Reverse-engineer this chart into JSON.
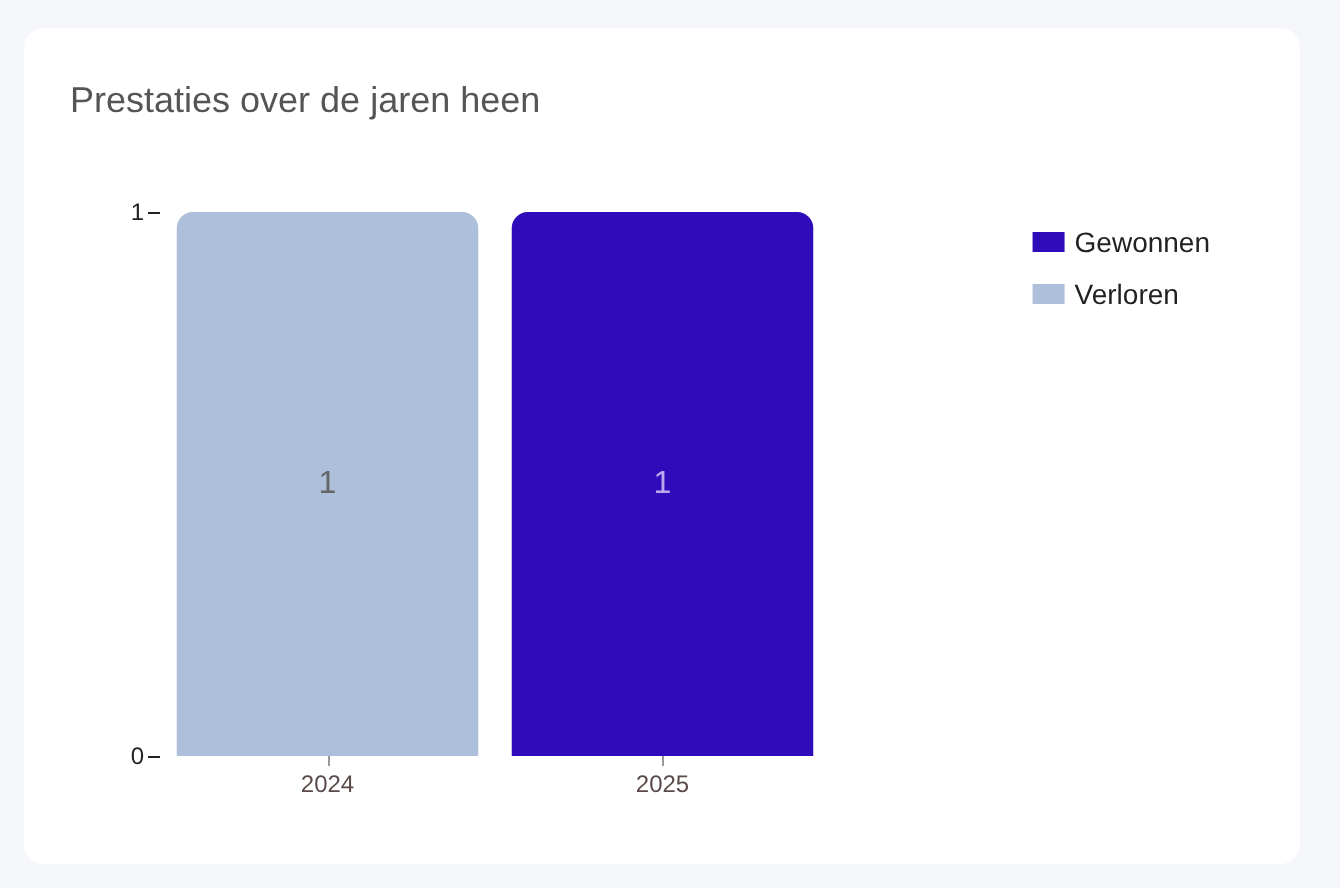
{
  "chart_data": {
    "type": "bar",
    "title": "Prestaties over de jaren heen",
    "categories": [
      "2024",
      "2025"
    ],
    "series": [
      {
        "name": "Gewonnen",
        "color": "#2e0cb9",
        "values": [
          0,
          1
        ],
        "value_labels": [
          null,
          "1"
        ]
      },
      {
        "name": "Verloren",
        "color": "#adbfda",
        "values": [
          1,
          0
        ],
        "value_labels": [
          "1",
          null
        ]
      }
    ],
    "stacked": true,
    "ylim": [
      0,
      1
    ],
    "yticks": [
      0,
      1
    ],
    "grid": false,
    "legend": "top right"
  }
}
